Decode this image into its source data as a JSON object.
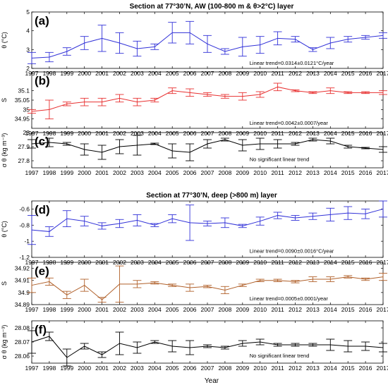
{
  "section_titles": [
    "Section at 77°30’N, AW (100-800 m & θ>2°C) layer",
    "Section at 77°30’N, deep (>800 m) layer"
  ],
  "xlabel": "Year",
  "chart_data": [
    {
      "type": "line",
      "panel_label": "(a)",
      "ylabel": "θ (°C)",
      "ylim": [
        2,
        5
      ],
      "yticks": [
        2,
        3,
        4,
        5
      ],
      "ytick_labels": [
        "2",
        "3",
        "4",
        "5"
      ],
      "color": "#3232d8",
      "annotation": "Linear trend=0.0314±0.0121°C/year",
      "x": [
        1997,
        1998,
        1999,
        2000,
        2001,
        2002,
        2003,
        2004,
        2005,
        2006,
        2007,
        2008,
        2009,
        2010,
        2011,
        2012,
        2013,
        2014,
        2015,
        2016,
        2017
      ],
      "values": [
        2.55,
        2.6,
        2.9,
        3.35,
        3.6,
        3.35,
        3.05,
        3.15,
        3.9,
        3.9,
        3.3,
        2.9,
        3.15,
        3.25,
        3.6,
        3.55,
        3.0,
        3.35,
        3.55,
        3.65,
        3.75
      ],
      "errors": [
        0.3,
        0.25,
        0.2,
        0.35,
        0.7,
        0.55,
        0.4,
        0.15,
        0.55,
        0.6,
        0.45,
        0.15,
        0.5,
        0.45,
        0.35,
        0.15,
        0.1,
        0.3,
        0.15,
        0.1,
        0.15
      ]
    },
    {
      "type": "line",
      "panel_label": "(b)",
      "ylabel": "S",
      "ylim": [
        34.9,
        35.2
      ],
      "yticks": [
        34.95,
        35.0,
        35.05,
        35.1
      ],
      "ytick_labels": [
        "34.95",
        "35",
        "35.05",
        "35.1"
      ],
      "color": "#e83030",
      "annotation": "Linear trend=0.0042±0.0007/year",
      "x": [
        1997,
        1998,
        1999,
        2000,
        2001,
        2002,
        2003,
        2004,
        2005,
        2006,
        2007,
        2008,
        2009,
        2010,
        2011,
        2012,
        2013,
        2014,
        2015,
        2016,
        2017
      ],
      "values": [
        34.99,
        35.0,
        35.03,
        35.04,
        35.04,
        35.06,
        35.04,
        35.05,
        35.1,
        35.09,
        35.08,
        35.07,
        35.07,
        35.08,
        35.12,
        35.1,
        35.09,
        35.1,
        35.09,
        35.09,
        35.09
      ],
      "errors": [
        0.01,
        0.05,
        0.01,
        0.02,
        0.02,
        0.02,
        0.02,
        0.01,
        0.015,
        0.02,
        0.01,
        0.01,
        0.02,
        0.015,
        0.02,
        0.005,
        0.005,
        0.015,
        0.005,
        0.005,
        0.01
      ]
    },
    {
      "type": "line",
      "panel_label": "(c)",
      "ylabel": "σ θ (kg m⁻³)",
      "ylim": [
        27.75,
        28.0
      ],
      "yticks": [
        27.8,
        27.9,
        28.0
      ],
      "ytick_labels": [
        "27.8",
        "27.9",
        "28"
      ],
      "color": "#000000",
      "annotation": "No significant linear trend",
      "x": [
        1997,
        1998,
        1999,
        2000,
        2001,
        2002,
        2003,
        2004,
        2005,
        2006,
        2007,
        2008,
        2009,
        2010,
        2011,
        2012,
        2013,
        2014,
        2015,
        2016,
        2017
      ],
      "values": [
        27.92,
        27.93,
        27.92,
        27.88,
        27.86,
        27.9,
        27.91,
        27.92,
        27.87,
        27.86,
        27.92,
        27.95,
        27.91,
        27.92,
        27.92,
        27.92,
        27.95,
        27.94,
        27.9,
        27.89,
        27.88
      ],
      "errors": [
        0.03,
        0.03,
        0.01,
        0.04,
        0.05,
        0.05,
        0.07,
        0.005,
        0.05,
        0.06,
        0.03,
        0.01,
        0.04,
        0.04,
        0.03,
        0.01,
        0.01,
        0.02,
        0.01,
        0.005,
        0.02
      ]
    },
    {
      "type": "line",
      "panel_label": "(d)",
      "ylabel": "θ (°C)",
      "ylim": [
        -1.2,
        -0.5
      ],
      "yticks": [
        -1.2,
        -1.0,
        -0.8,
        -0.6
      ],
      "ytick_labels": [
        "-1.2",
        "-1",
        "-0.8",
        "-0.6"
      ],
      "color": "#3232d8",
      "annotation": "Linear trend=0.0090±0.0016°C/year",
      "x": [
        1997,
        1998,
        1999,
        2000,
        2001,
        2002,
        2003,
        2004,
        2005,
        2006,
        2007,
        2008,
        2009,
        2010,
        2011,
        2012,
        2013,
        2014,
        2015,
        2016,
        2017
      ],
      "values": [
        -0.86,
        -0.88,
        -0.72,
        -0.75,
        -0.81,
        -0.78,
        -0.74,
        -0.8,
        -0.72,
        -0.77,
        -0.78,
        -0.77,
        -0.81,
        -0.75,
        -0.68,
        -0.71,
        -0.69,
        -0.67,
        -0.65,
        -0.66,
        -0.6
      ],
      "errors": [
        0.18,
        0.06,
        0.1,
        0.06,
        0.04,
        0.05,
        0.07,
        0.02,
        0.05,
        0.22,
        0.03,
        0.06,
        0.02,
        0.05,
        0.04,
        0.03,
        0.04,
        0.08,
        0.08,
        0.06,
        0.1
      ]
    },
    {
      "type": "line",
      "panel_label": "(e)",
      "ylabel": "S",
      "ylim": [
        34.89,
        34.925
      ],
      "yticks": [
        34.89,
        34.9,
        34.91,
        34.92
      ],
      "ytick_labels": [
        "34.89",
        "34.9",
        "34.91",
        "34.92"
      ],
      "color": "#b0602a",
      "annotation": "Linear trend=0.0005±0.0001/year",
      "x": [
        1997,
        1998,
        1999,
        2000,
        2001,
        2002,
        2003,
        2004,
        2005,
        2006,
        2007,
        2008,
        2009,
        2010,
        2011,
        2012,
        2013,
        2014,
        2015,
        2016,
        2017
      ],
      "values": [
        34.906,
        34.909,
        34.898,
        34.906,
        34.894,
        34.907,
        34.907,
        34.908,
        34.906,
        34.904,
        34.905,
        34.902,
        34.906,
        34.91,
        34.91,
        34.909,
        34.911,
        34.911,
        34.913,
        34.911,
        34.913
      ],
      "errors": [
        0.006,
        0.003,
        0.003,
        0.005,
        0.002,
        0.015,
        0.003,
        0.001,
        0.001,
        0.003,
        0.001,
        0.003,
        0.001,
        0.001,
        0.001,
        0.001,
        0.002,
        0.002,
        0.001,
        0.001,
        0.003
      ]
    },
    {
      "type": "line",
      "panel_label": "(f)",
      "ylabel": "σ θ (kg m⁻³)",
      "ylim": [
        28.055,
        28.085
      ],
      "yticks": [
        28.06,
        28.07,
        28.08
      ],
      "ytick_labels": [
        "28.06",
        "28.07",
        "28.08"
      ],
      "color": "#000000",
      "annotation": "No significant linear trend",
      "x": [
        1997,
        1998,
        1999,
        2000,
        2001,
        2002,
        2003,
        2004,
        2005,
        2006,
        2007,
        2008,
        2009,
        2010,
        2011,
        2012,
        2013,
        2014,
        2015,
        2016,
        2017
      ],
      "values": [
        28.07,
        28.074,
        28.059,
        28.067,
        28.061,
        28.069,
        28.066,
        28.07,
        28.067,
        28.066,
        28.067,
        28.066,
        28.069,
        28.07,
        28.068,
        28.068,
        28.068,
        28.068,
        28.067,
        28.067,
        28.066
      ],
      "errors": [
        0.008,
        0.003,
        0.006,
        0.002,
        0.002,
        0.008,
        0.004,
        0.001,
        0.004,
        0.005,
        0.001,
        0.001,
        0.002,
        0.002,
        0.001,
        0.001,
        0.001,
        0.004,
        0.004,
        0.003,
        0.003
      ]
    }
  ]
}
